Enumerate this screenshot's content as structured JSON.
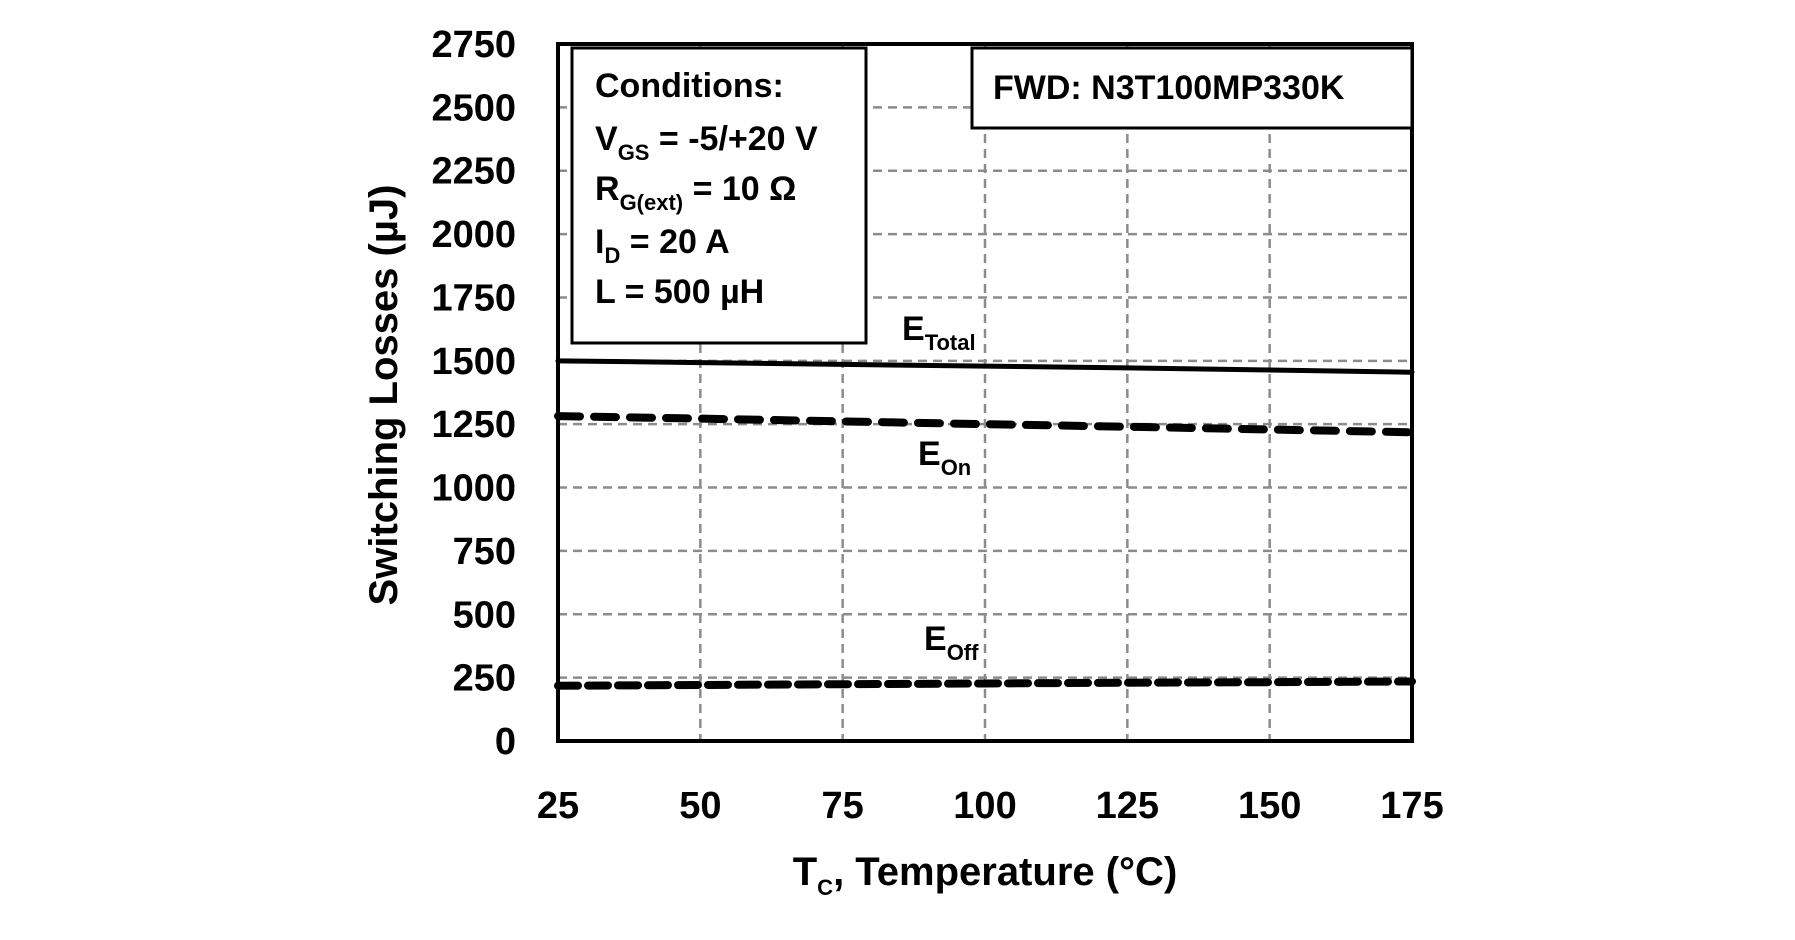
{
  "chart_data": {
    "type": "line",
    "title": "",
    "xlabel": "T_C, Temperature (°C)",
    "xlabel_main": "T",
    "xlabel_sub": "C",
    "xlabel_rest": ", Temperature (°C)",
    "ylabel": "Switching Losses (µJ)",
    "xlim": [
      25,
      175
    ],
    "ylim": [
      0,
      2750
    ],
    "x_ticks": [
      25,
      50,
      75,
      100,
      125,
      150,
      175
    ],
    "y_ticks": [
      0,
      250,
      500,
      750,
      1000,
      1250,
      1500,
      1750,
      2000,
      2250,
      2500,
      2750
    ],
    "grid": true,
    "x": [
      25,
      50,
      75,
      100,
      125,
      150,
      175
    ],
    "series": [
      {
        "name": "E_Total",
        "label_main": "E",
        "label_sub": "Total",
        "style": "solid",
        "values": [
          1500,
          1493,
          1486,
          1479,
          1472,
          1464,
          1455
        ]
      },
      {
        "name": "E_On",
        "label_main": "E",
        "label_sub": "On",
        "style": "dashed",
        "values": [
          1282,
          1272,
          1261,
          1250,
          1240,
          1229,
          1218
        ]
      },
      {
        "name": "E_Off",
        "label_main": "E",
        "label_sub": "Off",
        "style": "dashed-short",
        "values": [
          218,
          221,
          224,
          227,
          230,
          232,
          235
        ]
      }
    ],
    "annotations": {
      "conditions": {
        "title": "Conditions:",
        "lines": [
          {
            "main": "V",
            "sub": "GS",
            "rest": " = -5/+20 V"
          },
          {
            "main": "R",
            "sub": "G(ext)",
            "rest": " = 10 Ω"
          },
          {
            "main": "I",
            "sub": "D",
            "rest": " = 20 A"
          },
          {
            "main": "L = 500 µH",
            "sub": "",
            "rest": ""
          }
        ]
      },
      "device": "FWD: N3T100MP330K"
    }
  },
  "colors": {
    "line": "#000000",
    "grid": "#8c8c8c",
    "frame": "#000000",
    "background": "#ffffff"
  }
}
